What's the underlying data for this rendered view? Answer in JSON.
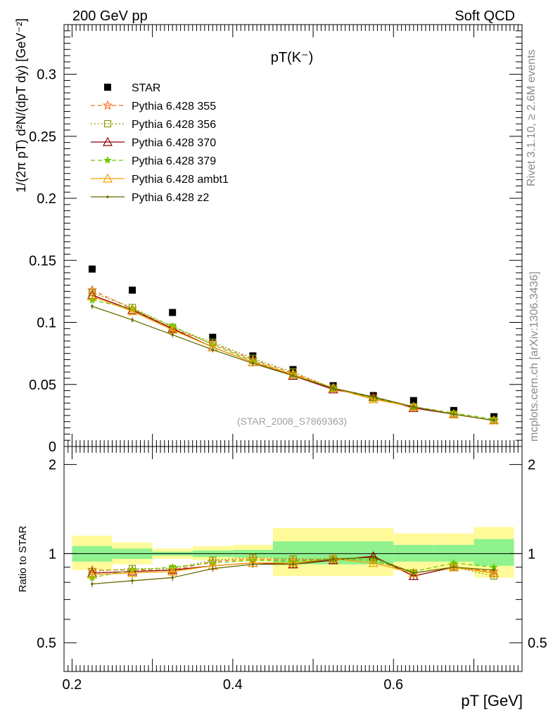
{
  "header": {
    "left_label": "200 GeV pp",
    "right_label": "Soft QCD"
  },
  "side_labels": {
    "rivet": "Rivet 3.1.10, ≥ 2.6M events",
    "mcplots": "mcplots.cern.ch [arXiv:1306.3436]"
  },
  "watermark": "(STAR_2008_S7869363)",
  "upper_axis": {
    "ylabel": "1/(2π pT) d²N/(dpT dy) [GeV⁻²]",
    "ytick_labels": [
      "0",
      "0.05",
      "0.1",
      "0.15",
      "0.2",
      "0.25",
      "0.3"
    ]
  },
  "lower_axis": {
    "ylabel": "Ratio to STAR",
    "ytick_labels": [
      "0.5",
      "1",
      "2"
    ],
    "xtick_labels": [
      "0.2",
      "0.4",
      "0.6"
    ],
    "xlabel": "pT [GeV]"
  },
  "colors": {
    "star": "#000000",
    "p355": "#ff6a1a",
    "p356": "#8a9a00",
    "p370": "#8b0000",
    "p379": "#66cc00",
    "ambt1": "#f5a000",
    "z2": "#6b6b00",
    "band_inner": "#8ff28f",
    "band_outer": "#fffb9a"
  },
  "chart_data": {
    "type": "scatter",
    "title": "pT(K⁻)",
    "xlabel": "pT [GeV]",
    "ylabel": "1/(2π pT) d²N/(dpT dy) [GeV⁻²]",
    "xlim": [
      0.19,
      0.76
    ],
    "ylim": [
      0,
      0.34
    ],
    "ratio_ylabel": "Ratio to STAR",
    "ratio_ylim": [
      0.4,
      2.3
    ],
    "ratio_scale": "log",
    "x": [
      0.225,
      0.275,
      0.325,
      0.375,
      0.425,
      0.475,
      0.525,
      0.575,
      0.625,
      0.675,
      0.725
    ],
    "bin_edges": [
      0.2,
      0.25,
      0.3,
      0.35,
      0.4,
      0.45,
      0.5,
      0.55,
      0.6,
      0.65,
      0.7,
      0.75
    ],
    "star_band_inner": [
      [
        0.94,
        1.06
      ],
      [
        0.96,
        1.04
      ],
      [
        0.985,
        1.015
      ],
      [
        0.975,
        1.025
      ],
      [
        0.97,
        1.03
      ],
      [
        0.92,
        1.1
      ],
      [
        0.92,
        1.1
      ],
      [
        0.92,
        1.1
      ],
      [
        0.94,
        1.07
      ],
      [
        0.94,
        1.07
      ],
      [
        0.91,
        1.12
      ]
    ],
    "star_band_outer": [
      [
        0.88,
        1.15
      ],
      [
        0.92,
        1.09
      ],
      [
        0.96,
        1.04
      ],
      [
        0.95,
        1.06
      ],
      [
        0.94,
        1.07
      ],
      [
        0.84,
        1.22
      ],
      [
        0.84,
        1.22
      ],
      [
        0.84,
        1.22
      ],
      [
        0.88,
        1.17
      ],
      [
        0.88,
        1.17
      ],
      [
        0.83,
        1.23
      ]
    ],
    "series": [
      {
        "name": "STAR",
        "key": "star",
        "marker": "square",
        "dash": "none",
        "values": [
          0.143,
          0.126,
          0.108,
          0.088,
          0.073,
          0.062,
          0.049,
          0.041,
          0.037,
          0.029,
          0.024
        ],
        "ratio": [
          1,
          1,
          1,
          1,
          1,
          1,
          1,
          1,
          1,
          1,
          1
        ]
      },
      {
        "name": "Pythia 6.428 355",
        "key": "p355",
        "marker": "star",
        "dash": "6,4",
        "values": [
          0.126,
          0.111,
          0.095,
          0.083,
          0.07,
          0.059,
          0.047,
          0.039,
          0.032,
          0.026,
          0.021
        ],
        "ratio": [
          0.88,
          0.88,
          0.88,
          0.94,
          0.96,
          0.95,
          0.96,
          0.95,
          0.86,
          0.9,
          0.87
        ]
      },
      {
        "name": "Pythia 6.428 356",
        "key": "p356",
        "marker": "square-open",
        "dash": "2,3",
        "values": [
          0.124,
          0.112,
          0.096,
          0.084,
          0.071,
          0.06,
          0.047,
          0.039,
          0.032,
          0.026,
          0.021
        ],
        "ratio": [
          0.87,
          0.89,
          0.89,
          0.95,
          0.97,
          0.96,
          0.96,
          0.95,
          0.86,
          0.9,
          0.84
        ]
      },
      {
        "name": "Pythia 6.428 370",
        "key": "p370",
        "marker": "triangle-open",
        "dash": "none",
        "values": [
          0.122,
          0.11,
          0.095,
          0.08,
          0.068,
          0.057,
          0.046,
          0.04,
          0.031,
          0.026,
          0.021
        ],
        "ratio": [
          0.86,
          0.87,
          0.88,
          0.91,
          0.93,
          0.92,
          0.95,
          0.98,
          0.84,
          0.9,
          0.86
        ]
      },
      {
        "name": "Pythia 6.428 379",
        "key": "p379",
        "marker": "star-small",
        "dash": "6,4",
        "values": [
          0.118,
          0.111,
          0.097,
          0.082,
          0.069,
          0.058,
          0.047,
          0.039,
          0.032,
          0.027,
          0.022
        ],
        "ratio": [
          0.83,
          0.88,
          0.9,
          0.93,
          0.95,
          0.94,
          0.96,
          0.95,
          0.87,
          0.93,
          0.9
        ]
      },
      {
        "name": "Pythia 6.428 ambt1",
        "key": "ambt1",
        "marker": "triangle-open",
        "dash": "none",
        "values": [
          0.121,
          0.109,
          0.094,
          0.08,
          0.068,
          0.058,
          0.047,
          0.038,
          0.032,
          0.026,
          0.021
        ],
        "ratio": [
          0.85,
          0.86,
          0.87,
          0.91,
          0.93,
          0.93,
          0.96,
          0.93,
          0.86,
          0.9,
          0.86
        ]
      },
      {
        "name": "Pythia 6.428 z2",
        "key": "z2",
        "marker": "dot",
        "dash": "none",
        "values": [
          0.113,
          0.102,
          0.09,
          0.078,
          0.067,
          0.057,
          0.047,
          0.04,
          0.032,
          0.026,
          0.021
        ],
        "ratio": [
          0.79,
          0.81,
          0.83,
          0.89,
          0.92,
          0.92,
          0.96,
          0.97,
          0.86,
          0.9,
          0.88
        ]
      }
    ]
  }
}
